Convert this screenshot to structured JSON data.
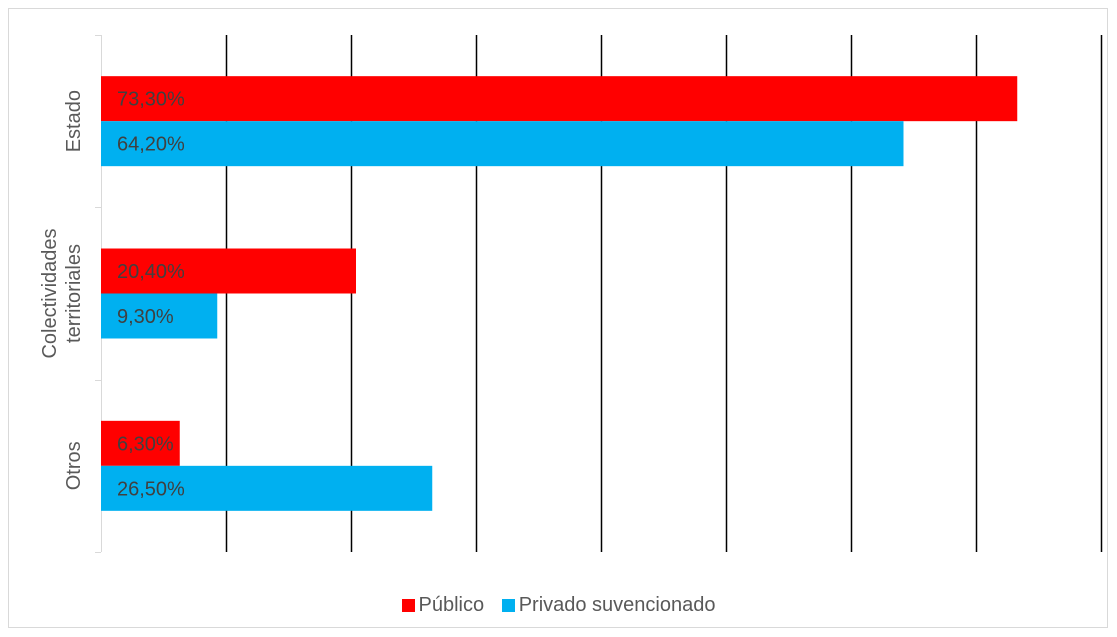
{
  "chart_data": {
    "type": "bar",
    "orientation": "horizontal",
    "categories": [
      "Estado",
      "Colectividades territoriales",
      "Otros"
    ],
    "category_display": [
      [
        "Estado"
      ],
      [
        "Colectividades",
        "territoriales"
      ],
      [
        "Otros"
      ]
    ],
    "series": [
      {
        "name": "Público",
        "color": "#ff0000",
        "values": [
          73.3,
          20.4,
          6.3
        ],
        "labels": [
          "73,30%",
          "20,40%",
          "6,30%"
        ]
      },
      {
        "name": "Privado suvencionado",
        "color": "#00b0f0",
        "values": [
          64.2,
          9.3,
          26.5
        ],
        "labels": [
          "64,20%",
          "9,30%",
          "26,50%"
        ]
      }
    ],
    "xlim": [
      0,
      80
    ],
    "grid": true,
    "legend_position": "bottom",
    "title": "",
    "xlabel": "",
    "ylabel": ""
  }
}
